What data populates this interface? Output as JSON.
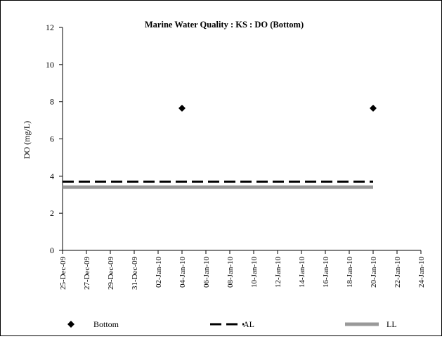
{
  "chart_data": {
    "type": "scatter",
    "title": "Marine Water Quality : KS  : DO (Bottom)",
    "xlabel": "",
    "ylabel": "DO (mg/L)",
    "ylim": [
      0,
      12
    ],
    "yticks": [
      "0",
      "2",
      "4",
      "6",
      "8",
      "10",
      "12"
    ],
    "xlim": [
      "25-Dec-09",
      "24-Jan-10"
    ],
    "xticks": [
      "25-Dec-09",
      "27-Dec-09",
      "29-Dec-09",
      "31-Dec-09",
      "02-Jan-10",
      "04-Jan-10",
      "06-Jan-10",
      "08-Jan-10",
      "10-Jan-10",
      "12-Jan-10",
      "14-Jan-10",
      "16-Jan-10",
      "18-Jan-10",
      "20-Jan-10",
      "22-Jan-10",
      "24-Jan-10"
    ],
    "grid": false,
    "legend_position": "bottom",
    "series": [
      {
        "name": "Bottom",
        "kind": "points",
        "marker": "diamond",
        "color": "#000000",
        "points": [
          {
            "x": "04-Jan-10",
            "y": 7.65
          },
          {
            "x": "20-Jan-10",
            "y": 7.65
          }
        ]
      },
      {
        "name": "AL",
        "kind": "line",
        "style": "dashed",
        "color": "#000000",
        "points": [
          {
            "x": "25-Dec-09",
            "y": 3.7
          },
          {
            "x": "20-Jan-10",
            "y": 3.7
          }
        ]
      },
      {
        "name": "LL",
        "kind": "line",
        "style": "thick",
        "color": "#999999",
        "points": [
          {
            "x": "25-Dec-09",
            "y": 3.4
          },
          {
            "x": "20-Jan-10",
            "y": 3.4
          }
        ]
      }
    ]
  }
}
